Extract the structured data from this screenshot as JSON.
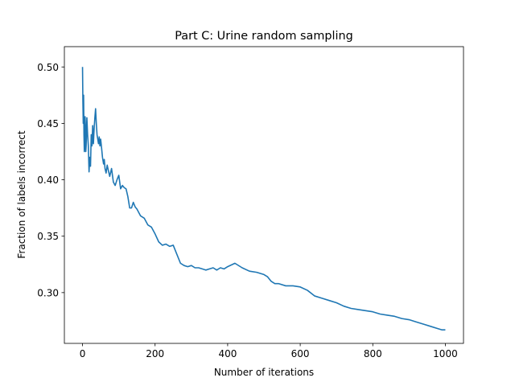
{
  "chart_data": {
    "type": "line",
    "title": "Part C: Urine random sampling",
    "xlabel": "Number of iterations",
    "ylabel": "Fraction of labels incorrect",
    "xlim": [
      -50,
      1050
    ],
    "ylim": [
      0.255,
      0.518
    ],
    "xticks": [
      0,
      200,
      400,
      600,
      800,
      1000
    ],
    "xtick_labels": [
      "0",
      "200",
      "400",
      "600",
      "800",
      "1000"
    ],
    "yticks": [
      0.3,
      0.35,
      0.4,
      0.45,
      0.5
    ],
    "ytick_labels": [
      "0.30",
      "0.35",
      "0.40",
      "0.45",
      "0.50"
    ],
    "grid": false,
    "series": [
      {
        "color": "#1f77b4",
        "x": [
          0,
          1,
          2,
          3,
          4,
          5,
          6,
          7,
          8,
          9,
          10,
          12,
          14,
          16,
          18,
          20,
          22,
          24,
          26,
          28,
          30,
          32,
          34,
          36,
          38,
          40,
          42,
          44,
          46,
          48,
          50,
          52,
          55,
          58,
          60,
          62,
          65,
          68,
          70,
          75,
          80,
          85,
          90,
          95,
          100,
          105,
          110,
          115,
          120,
          125,
          130,
          135,
          140,
          145,
          150,
          160,
          170,
          180,
          190,
          200,
          210,
          220,
          230,
          240,
          250,
          260,
          270,
          280,
          290,
          300,
          310,
          320,
          330,
          340,
          350,
          360,
          370,
          380,
          390,
          400,
          420,
          440,
          460,
          480,
          500,
          510,
          520,
          530,
          540,
          560,
          580,
          600,
          620,
          640,
          660,
          680,
          700,
          720,
          740,
          760,
          780,
          800,
          820,
          840,
          860,
          880,
          900,
          920,
          940,
          960,
          980,
          990,
          1000
        ],
        "y": [
          0.5,
          0.47,
          0.45,
          0.475,
          0.44,
          0.425,
          0.432,
          0.456,
          0.448,
          0.425,
          0.43,
          0.455,
          0.44,
          0.43,
          0.407,
          0.42,
          0.412,
          0.44,
          0.43,
          0.448,
          0.432,
          0.445,
          0.455,
          0.463,
          0.45,
          0.44,
          0.436,
          0.432,
          0.438,
          0.43,
          0.436,
          0.43,
          0.42,
          0.414,
          0.418,
          0.41,
          0.406,
          0.413,
          0.41,
          0.403,
          0.41,
          0.398,
          0.395,
          0.4,
          0.404,
          0.392,
          0.395,
          0.393,
          0.392,
          0.385,
          0.375,
          0.375,
          0.38,
          0.376,
          0.374,
          0.368,
          0.366,
          0.36,
          0.358,
          0.352,
          0.345,
          0.342,
          0.343,
          0.341,
          0.342,
          0.334,
          0.326,
          0.324,
          0.323,
          0.324,
          0.322,
          0.322,
          0.321,
          0.32,
          0.321,
          0.322,
          0.32,
          0.322,
          0.321,
          0.323,
          0.326,
          0.322,
          0.319,
          0.318,
          0.316,
          0.314,
          0.31,
          0.308,
          0.308,
          0.306,
          0.306,
          0.305,
          0.302,
          0.297,
          0.295,
          0.293,
          0.291,
          0.288,
          0.286,
          0.285,
          0.284,
          0.283,
          0.281,
          0.28,
          0.279,
          0.277,
          0.276,
          0.274,
          0.272,
          0.27,
          0.268,
          0.267,
          0.267
        ]
      }
    ]
  }
}
